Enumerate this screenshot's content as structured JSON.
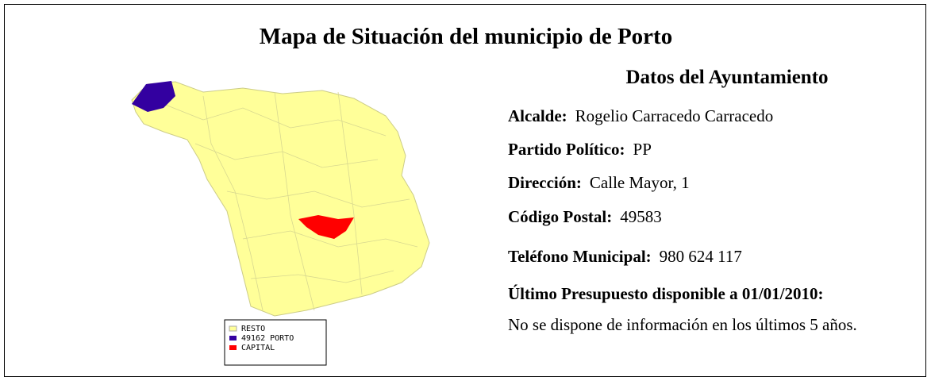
{
  "header": {
    "title": "Mapa de Situación del municipio de Porto"
  },
  "map": {
    "legend": [
      "RESTO",
      "49162 PORTO",
      "CAPITAL"
    ]
  },
  "datos": {
    "title": "Datos del Ayuntamiento",
    "fields": [
      {
        "label": "Alcalde:",
        "value": "Rogelio Carracedo Carracedo"
      },
      {
        "label": "Partido Político:",
        "value": "PP"
      },
      {
        "label": "Dirección:",
        "value": "Calle Mayor, 1"
      },
      {
        "label": "Código Postal:",
        "value": "49583"
      },
      {
        "label": "Teléfono Municipal:",
        "value": "980 624 117"
      }
    ],
    "presupuesto": {
      "label": "Último Presupuesto disponible a 01/01/2010:",
      "text": "No se dispone de información en los últimos 5 años."
    }
  }
}
